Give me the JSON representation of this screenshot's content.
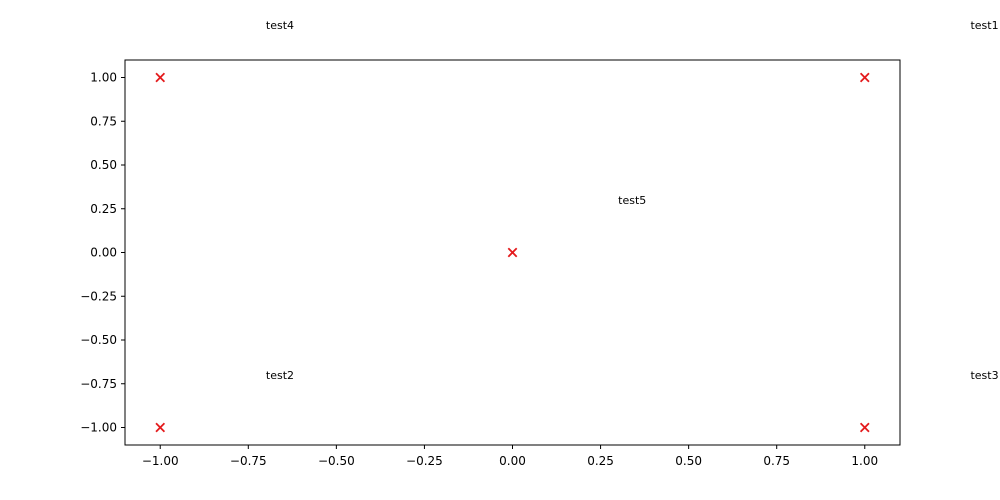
{
  "chart_data": {
    "type": "scatter",
    "title": "",
    "xlabel": "",
    "ylabel": "",
    "xlim": [
      -1.1,
      1.1
    ],
    "ylim": [
      -1.1,
      1.1
    ],
    "grid": false,
    "marker": "x",
    "marker_color": "#e41a1c",
    "x_ticks": [
      {
        "value": -1.0,
        "label": "−1.00"
      },
      {
        "value": -0.75,
        "label": "−0.75"
      },
      {
        "value": -0.5,
        "label": "−0.50"
      },
      {
        "value": -0.25,
        "label": "−0.25"
      },
      {
        "value": 0.0,
        "label": "0.00"
      },
      {
        "value": 0.25,
        "label": "0.25"
      },
      {
        "value": 0.5,
        "label": "0.50"
      },
      {
        "value": 0.75,
        "label": "0.75"
      },
      {
        "value": 1.0,
        "label": "1.00"
      }
    ],
    "y_ticks": [
      {
        "value": 1.0,
        "label": "1.00"
      },
      {
        "value": 0.75,
        "label": "0.75"
      },
      {
        "value": 0.5,
        "label": "0.50"
      },
      {
        "value": 0.25,
        "label": "0.25"
      },
      {
        "value": 0.0,
        "label": "0.00"
      },
      {
        "value": -0.25,
        "label": "−0.25"
      },
      {
        "value": -0.5,
        "label": "−0.50"
      },
      {
        "value": -0.75,
        "label": "−0.75"
      },
      {
        "value": -1.0,
        "label": "−1.00"
      }
    ],
    "points": [
      {
        "x": 1.0,
        "y": 1.0
      },
      {
        "x": -1.0,
        "y": -1.0
      },
      {
        "x": 1.0,
        "y": -1.0
      },
      {
        "x": -1.0,
        "y": 1.0
      },
      {
        "x": 0.0,
        "y": 0.0
      }
    ],
    "annotations": [
      {
        "text": "test1",
        "x": 1.3,
        "y": 1.3
      },
      {
        "text": "test2",
        "x": -0.7,
        "y": -0.7
      },
      {
        "text": "test3",
        "x": 1.3,
        "y": -0.7
      },
      {
        "text": "test4",
        "x": -0.7,
        "y": 1.3
      },
      {
        "text": "test5",
        "x": 0.3,
        "y": 0.3
      }
    ]
  }
}
